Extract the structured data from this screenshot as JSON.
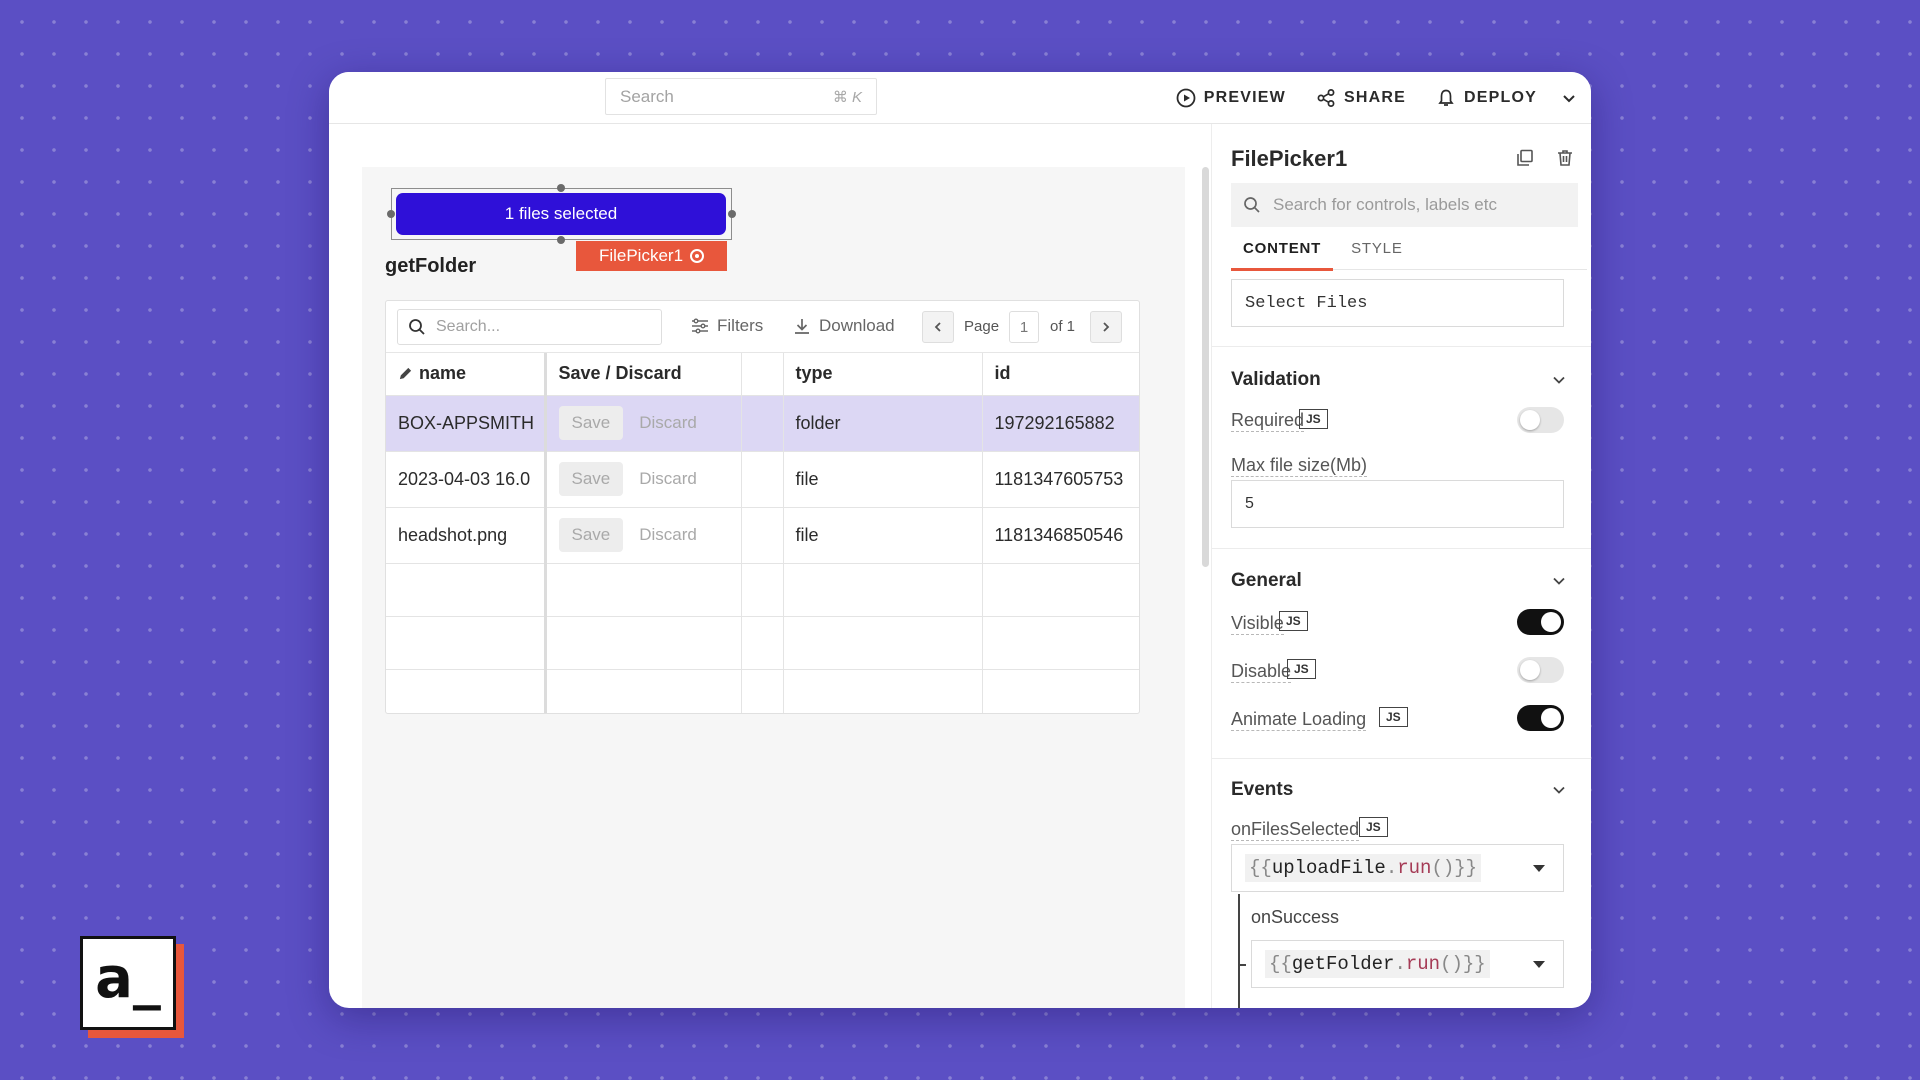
{
  "topbar": {
    "search_placeholder": "Search",
    "search_shortcut": "⌘ K",
    "preview_label": "PREVIEW",
    "share_label": "SHARE",
    "deploy_label": "DEPLOY"
  },
  "canvas": {
    "filepicker_text": "1 files selected",
    "widget_tag": "FilePicker1",
    "table_title": "getFolder",
    "table": {
      "search_placeholder": "Search...",
      "filters_label": "Filters",
      "download_label": "Download",
      "page_label": "Page",
      "page_number": "1",
      "page_of": "of 1",
      "columns": [
        "name",
        "Save / Discard",
        "",
        "type",
        "id"
      ],
      "rows": [
        {
          "name": "BOX-APPSMITH",
          "save": "Save",
          "discard": "Discard",
          "type": "folder",
          "id": "197292165882",
          "selected": true
        },
        {
          "name": "2023-04-03 16.0",
          "save": "Save",
          "discard": "Discard",
          "type": "file",
          "id": "1181347605753",
          "selected": false
        },
        {
          "name": "headshot.png",
          "save": "Save",
          "discard": "Discard",
          "type": "file",
          "id": "1181346850546",
          "selected": false
        }
      ]
    }
  },
  "pane": {
    "title": "FilePicker1",
    "search_placeholder": "Search for controls, labels etc",
    "tabs": [
      "CONTENT",
      "STYLE"
    ],
    "label_value": "Select Files",
    "validation": {
      "title": "Validation",
      "required_label": "Required",
      "required_on": false,
      "max_size_label": "Max file size(Mb)",
      "max_size_value": "5"
    },
    "general": {
      "title": "General",
      "visible_label": "Visible",
      "visible_on": true,
      "disable_label": "Disable",
      "disable_on": false,
      "animate_label": "Animate Loading",
      "animate_on": true
    },
    "events": {
      "title": "Events",
      "on_files_selected_label": "onFilesSelected",
      "on_files_selected_open": "{{",
      "on_files_selected_obj": "uploadFile",
      "on_files_selected_dot": ".",
      "on_files_selected_fn": "run",
      "on_files_selected_close": "()}}",
      "on_success_label": "onSuccess",
      "on_success_open": "{{",
      "on_success_obj": "getFolder",
      "on_success_dot": ".",
      "on_success_fn": "run",
      "on_success_close": "()}}"
    },
    "js_badge": "JS"
  },
  "logo": {
    "text": "a_"
  },
  "colors": {
    "background": "#5b4fc4",
    "accent": "#e8573c",
    "filepicker": "#2f10d8",
    "selected_row": "#dcd7f4"
  }
}
